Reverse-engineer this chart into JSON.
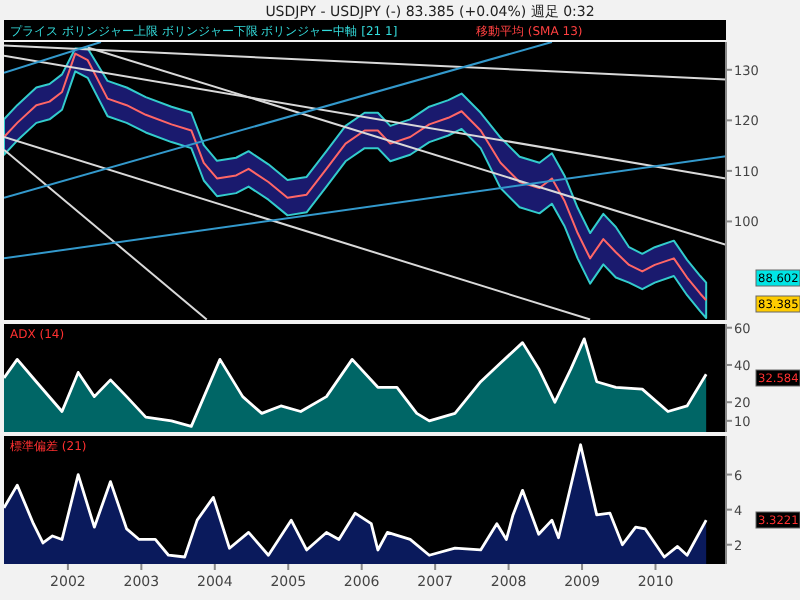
{
  "chart_data": [
    {
      "type": "line",
      "title": "USDJPY - USDJPY (-)   83.385 (+0.04%)   週足  0:32",
      "annotations": [
        "プライス ボリンジャー上限 ボリンジャー下限 ボリンジャー中軸 [21 1]",
        "移動平均 (SMA 13)",
        "88.602",
        "83.385"
      ],
      "x": [
        2001.13,
        2001.31,
        2001.57,
        2001.75,
        2001.92,
        2002.1,
        2002.27,
        2002.54,
        2002.8,
        2003.06,
        2003.41,
        2003.68,
        2003.85,
        2004.03,
        2004.29,
        2004.46,
        2004.73,
        2004.99,
        2005.25,
        2005.52,
        2005.78,
        2006.04,
        2006.22,
        2006.39,
        2006.66,
        2006.92,
        2007.18,
        2007.36,
        2007.62,
        2007.89,
        2008.15,
        2008.42,
        2008.59,
        2008.76,
        2008.94,
        2009.11,
        2009.29,
        2009.46,
        2009.64,
        2009.82,
        2009.99,
        2010.25,
        2010.43,
        2010.61,
        2010.69
      ],
      "series": [
        {
          "color": "#ff6666",
          "values": [
            116.7,
            119.5,
            123.0,
            123.7,
            125.6,
            133.2,
            131.9,
            124.3,
            123.0,
            121.1,
            119.2,
            118.0,
            111.6,
            108.5,
            109.1,
            110.4,
            107.8,
            104.7,
            105.3,
            110.4,
            115.4,
            118.0,
            118.0,
            115.4,
            116.7,
            119.2,
            120.5,
            121.8,
            118.0,
            111.6,
            107.8,
            106.6,
            108.5,
            104.1,
            97.7,
            92.7,
            96.5,
            93.9,
            91.4,
            90.1,
            91.4,
            92.7,
            88.9,
            85.7,
            84.4
          ],
          "upper": [
            120.2,
            123.0,
            126.5,
            127.2,
            129.1,
            134.2,
            134.2,
            127.8,
            126.5,
            124.6,
            122.7,
            121.5,
            115.1,
            112.0,
            112.6,
            113.9,
            111.3,
            108.2,
            108.8,
            113.9,
            118.9,
            121.5,
            121.5,
            118.9,
            120.2,
            122.7,
            124.0,
            125.3,
            121.5,
            116.6,
            112.8,
            111.6,
            113.5,
            109.1,
            102.7,
            97.7,
            101.5,
            98.9,
            94.9,
            93.6,
            94.9,
            96.2,
            92.4,
            89.2,
            87.9
          ],
          "lower": [
            113.2,
            116.0,
            119.5,
            120.2,
            122.1,
            129.7,
            128.4,
            120.8,
            119.5,
            117.6,
            115.7,
            114.5,
            108.1,
            105.0,
            105.6,
            106.9,
            104.3,
            101.2,
            101.8,
            106.9,
            111.9,
            114.5,
            114.5,
            111.9,
            113.2,
            115.7,
            117.0,
            118.3,
            114.5,
            106.6,
            102.8,
            101.6,
            103.5,
            99.1,
            92.7,
            87.7,
            91.5,
            88.9,
            87.9,
            86.6,
            87.9,
            89.2,
            85.4,
            82.2,
            80.9
          ]
        },
        {
          "type": "line",
          "color": "#d9d9d9",
          "x": [
            2001.13,
            2010.96
          ],
          "values": [
            134.8,
            128.1
          ]
        },
        {
          "type": "line",
          "color": "#d9d9d9",
          "x": [
            2001.13,
            2010.96
          ],
          "values": [
            132.8,
            108.5
          ]
        },
        {
          "type": "line",
          "color": "#d9d9d9",
          "x": [
            2002.27,
            2010.96
          ],
          "values": [
            134.4,
            95.4
          ]
        },
        {
          "type": "line",
          "color": "#d9d9d9",
          "x": [
            2001.13,
            2009.11
          ],
          "values": [
            116.7,
            80.6
          ]
        },
        {
          "type": "line",
          "color": "#d9d9d9",
          "x": [
            2001.13,
            2003.89
          ],
          "values": [
            114.2,
            80.6
          ]
        },
        {
          "type": "line",
          "color": "#3399cc",
          "x": [
            2001.13,
            2002.45
          ],
          "values": [
            129.4,
            135.5
          ]
        },
        {
          "type": "line",
          "color": "#3399cc",
          "x": [
            2001.13,
            2008.59
          ],
          "values": [
            104.7,
            135.5
          ]
        },
        {
          "type": "line",
          "color": "#3399cc",
          "x": [
            2001.13,
            2010.96
          ],
          "values": [
            92.7,
            112.9
          ]
        }
      ],
      "xlim": [
        2001.13,
        2010.96
      ],
      "ylim": [
        80.5,
        135.5
      ],
      "yticks": [
        100,
        110,
        120,
        130
      ],
      "tick_labels": "y"
    },
    {
      "type": "area",
      "title": "ADX (14)",
      "annotations": [
        "32.584"
      ],
      "x": [
        2001.13,
        2001.31,
        2001.57,
        2001.92,
        2002.14,
        2002.36,
        2002.58,
        2002.8,
        2003.06,
        2003.41,
        2003.68,
        2004.07,
        2004.38,
        2004.64,
        2004.9,
        2005.17,
        2005.52,
        2005.87,
        2006.22,
        2006.48,
        2006.75,
        2006.92,
        2007.27,
        2007.62,
        2007.89,
        2008.19,
        2008.41,
        2008.63,
        2008.85,
        2009.03,
        2009.2,
        2009.46,
        2009.82,
        2010.17,
        2010.43,
        2010.69
      ],
      "series": [
        {
          "color": "#006666",
          "values": [
            33,
            43,
            31,
            15,
            36,
            23,
            32,
            23,
            12,
            10,
            7,
            43,
            23,
            14,
            18,
            15,
            23,
            43,
            28,
            28,
            14,
            10,
            14,
            31,
            41,
            52,
            38,
            20,
            38,
            54,
            31,
            28,
            27,
            15,
            18,
            35
          ]
        }
      ],
      "xlim": [
        2001.13,
        2010.96
      ],
      "ylim": [
        4,
        62
      ],
      "yticks": [
        10,
        20,
        40,
        60
      ],
      "tick_labels": "y"
    },
    {
      "type": "area",
      "title": "標準偏差 (21)",
      "annotations": [
        "3.3221"
      ],
      "x": [
        2001.13,
        2001.31,
        2001.53,
        2001.66,
        2001.79,
        2001.92,
        2002.14,
        2002.36,
        2002.58,
        2002.8,
        2002.97,
        2003.19,
        2003.37,
        2003.59,
        2003.76,
        2003.98,
        2004.2,
        2004.46,
        2004.73,
        2005.04,
        2005.25,
        2005.52,
        2005.69,
        2005.91,
        2006.13,
        2006.22,
        2006.35,
        2006.66,
        2006.92,
        2007.27,
        2007.62,
        2007.84,
        2007.97,
        2008.06,
        2008.19,
        2008.41,
        2008.59,
        2008.68,
        2008.98,
        2009.2,
        2009.38,
        2009.55,
        2009.73,
        2009.86,
        2010.12,
        2010.3,
        2010.43,
        2010.69
      ],
      "series": [
        {
          "color": "#0a1a5c",
          "values": [
            4.1,
            5.4,
            3.2,
            2.1,
            2.5,
            2.3,
            6.0,
            3.0,
            5.6,
            2.9,
            2.3,
            2.3,
            1.4,
            1.3,
            3.4,
            4.7,
            1.8,
            2.7,
            1.4,
            3.4,
            1.7,
            2.7,
            2.3,
            3.8,
            3.2,
            1.7,
            2.7,
            2.3,
            1.4,
            1.8,
            1.7,
            3.2,
            2.3,
            3.7,
            5.1,
            2.6,
            3.4,
            2.4,
            7.7,
            3.7,
            3.8,
            2.0,
            3.0,
            2.9,
            1.3,
            1.9,
            1.4,
            3.4
          ]
        }
      ],
      "xlim": [
        2001.13,
        2010.96
      ],
      "ylim": [
        0.9,
        8.2
      ],
      "yticks": [
        2,
        4,
        6
      ],
      "xticks": [
        2002,
        2003,
        2004,
        2005,
        2006,
        2007,
        2008,
        2009,
        2010
      ]
    }
  ]
}
